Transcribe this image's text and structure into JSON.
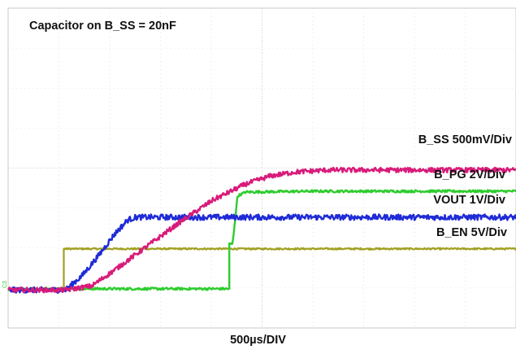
{
  "chart_data": {
    "type": "line",
    "title": "Capacitor on B_SS = 20nF",
    "xlabel": "500µs/DIV",
    "x_unit": "µs",
    "xlim": [
      -350,
      2750
    ],
    "grid": true,
    "grid_divisions": {
      "x": 10,
      "y": 8
    },
    "channel_marker": "C3",
    "series": [
      {
        "name": "B_SS 500mV/Div",
        "label": "B_SS 500mV/Div",
        "color": "#d81b7a",
        "noise_divs": 0.06,
        "points": [
          [
            -350,
            -3.05
          ],
          [
            0,
            -3.05
          ],
          [
            160,
            -2.95
          ],
          [
            300,
            -2.55
          ],
          [
            500,
            -1.95
          ],
          [
            700,
            -1.35
          ],
          [
            900,
            -0.8
          ],
          [
            1100,
            -0.4
          ],
          [
            1250,
            -0.2
          ],
          [
            1400,
            -0.1
          ],
          [
            1600,
            -0.05
          ],
          [
            1800,
            -0.05
          ],
          [
            2750,
            -0.05
          ]
        ]
      },
      {
        "name": "B_PG 2V/Div",
        "label": "B_PG 2V/Div",
        "color": "#2ecc2e",
        "noise_divs": 0.03,
        "points": [
          [
            -350,
            -3.02
          ],
          [
            1000,
            -3.02
          ],
          [
            1000,
            -1.9
          ],
          [
            1020,
            -1.9
          ],
          [
            1050,
            -0.7
          ],
          [
            1100,
            -0.6
          ],
          [
            1500,
            -0.58
          ],
          [
            2750,
            -0.58
          ]
        ]
      },
      {
        "name": "VOUT 1V/Div",
        "label": "VOUT 1V/Div",
        "color": "#1f2bd6",
        "noise_divs": 0.07,
        "points": [
          [
            -350,
            -3.05
          ],
          [
            0,
            -3.05
          ],
          [
            100,
            -2.7
          ],
          [
            200,
            -2.2
          ],
          [
            300,
            -1.65
          ],
          [
            380,
            -1.3
          ],
          [
            430,
            -1.23
          ],
          [
            2750,
            -1.23
          ]
        ]
      },
      {
        "name": "B_EN 5V/Div",
        "label": "B_EN 5V/Div",
        "color": "#a0a020",
        "noise_divs": 0.02,
        "points": [
          [
            -350,
            -3.05
          ],
          [
            -10,
            -3.05
          ],
          [
            -10,
            -2.02
          ],
          [
            2750,
            -2.02
          ]
        ]
      }
    ]
  }
}
